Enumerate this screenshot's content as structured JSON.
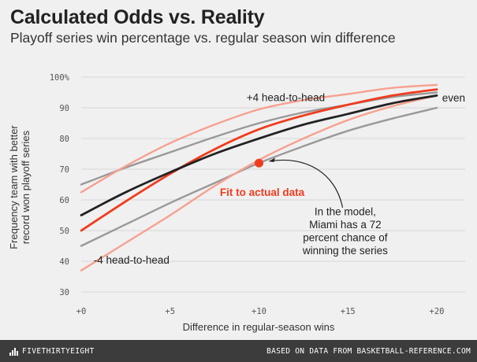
{
  "header": {
    "title": "Calculated Odds vs. Reality",
    "subtitle": "Playoff series win percentage vs. regular season win difference"
  },
  "footer": {
    "brand": "FIVETHIRTYEIGHT",
    "source": "BASED ON DATA FROM BASKETBALL-REFERENCE.COM"
  },
  "colors": {
    "fit": "#f03c1e",
    "model_even": "#222222",
    "model_hth_gray": "#999999",
    "fit_hth_salmon": "#f7a090",
    "point": "#f03c1e"
  },
  "chart_data": {
    "type": "line",
    "title": "Calculated Odds vs. Reality",
    "subtitle": "Playoff series win percentage vs. regular season win difference",
    "xlabel": "Difference in regular-season wins",
    "ylabel": [
      "Frequency team with better",
      "record won playoff series"
    ],
    "xlim": [
      0,
      20
    ],
    "ylim": [
      30,
      100
    ],
    "x_ticks": [
      0,
      5,
      10,
      15,
      20
    ],
    "x_tick_labels": [
      "+0",
      "+5",
      "+10",
      "+15",
      "+20"
    ],
    "y_ticks": [
      30,
      40,
      50,
      60,
      70,
      80,
      90,
      100
    ],
    "y_tick_labels": [
      "30",
      "40",
      "50",
      "60",
      "70",
      "80",
      "90",
      "100%"
    ],
    "grid": "horizontal",
    "x": [
      0,
      2.5,
      5,
      7.5,
      10,
      12.5,
      15,
      17.5,
      20
    ],
    "series": [
      {
        "name": "model +4 head-to-head",
        "group": "model",
        "color": "#999999",
        "width": 2.4,
        "values": [
          65,
          70.5,
          75.5,
          80.5,
          85,
          88.5,
          91,
          93.5,
          95
        ]
      },
      {
        "name": "model even",
        "group": "model",
        "color": "#222222",
        "width": 2.8,
        "values": [
          55,
          62.5,
          69,
          75,
          80,
          84.5,
          88,
          91.5,
          94
        ]
      },
      {
        "name": "model -4 head-to-head",
        "group": "model",
        "color": "#999999",
        "width": 2.4,
        "values": [
          45,
          52,
          59,
          65.5,
          72,
          77.5,
          82.5,
          86.5,
          90
        ]
      },
      {
        "name": "fit +4 head-to-head",
        "group": "fit",
        "color": "#f7a090",
        "width": 2.4,
        "values": [
          62.5,
          71,
          78.5,
          84.5,
          89.5,
          92.5,
          94.5,
          96.5,
          97.5
        ]
      },
      {
        "name": "Fit to actual data",
        "group": "fit",
        "color": "#f03c1e",
        "width": 2.8,
        "values": [
          50,
          59.5,
          68.5,
          76.5,
          83,
          87.5,
          91,
          94,
          96
        ]
      },
      {
        "name": "fit -4 head-to-head",
        "group": "fit",
        "color": "#f7a090",
        "width": 2.4,
        "values": [
          37,
          46,
          55,
          64.5,
          73,
          80,
          86,
          90.5,
          94
        ]
      }
    ],
    "highlight_point": {
      "x": 10,
      "y": 72,
      "color": "#f03c1e"
    },
    "annotations": [
      {
        "text": "+4 head-to-head",
        "x": 9.3,
        "y": 93.5
      },
      {
        "text": "even",
        "x": 20.3,
        "y": 93.3
      },
      {
        "text": "-4 head-to-head",
        "x": 0.7,
        "y": 40.5
      },
      {
        "text": "Fit to actual data",
        "x": 7.8,
        "y": 62.6,
        "style": "fit"
      },
      {
        "lines": [
          "In the model,",
          "Miami has a 72",
          "percent chance of",
          "winning the series"
        ],
        "x": 14.85,
        "y": 55,
        "align": "middle"
      }
    ]
  }
}
